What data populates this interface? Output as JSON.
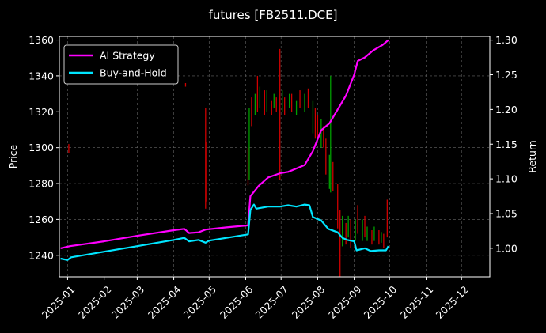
{
  "chart_data": {
    "type": "line",
    "title": "futures [FB2511.DCE]",
    "xlabel": "",
    "ylabel": "Price",
    "y2label": "Return",
    "grid": true,
    "legend_position": "top-left",
    "xlim": [
      "2024-12-25",
      "2025-12-25"
    ],
    "ylim": [
      1228,
      1362
    ],
    "y2lim": [
      0.9588,
      1.3053
    ],
    "x_ticks": [
      "2025-01",
      "2025-02",
      "2025-03",
      "2025-04",
      "2025-05",
      "2025-06",
      "2025-07",
      "2025-08",
      "2025-09",
      "2025-10",
      "2025-11",
      "2025-12"
    ],
    "y_ticks": [
      1240,
      1260,
      1280,
      1300,
      1320,
      1340,
      1360
    ],
    "y2_ticks": [
      "1.00",
      "1.05",
      "1.10",
      "1.15",
      "1.20",
      "1.25",
      "1.30"
    ],
    "colors": {
      "up": "#00a000",
      "down": "#d00000",
      "ai": "#ff00ff",
      "bh": "#00e5ff"
    },
    "price_bars": [
      {
        "x": "2025-01-02",
        "low": 1297,
        "high": 1302,
        "dir": "down"
      },
      {
        "x": "2025-04-11",
        "low": 1334,
        "high": 1336,
        "dir": "down"
      },
      {
        "x": "2025-04-28",
        "low": 1266,
        "high": 1322,
        "dir": "down"
      },
      {
        "x": "2025-04-29",
        "low": 1270,
        "high": 1303,
        "dir": "down"
      },
      {
        "x": "2025-06-03",
        "low": 1279,
        "high": 1300,
        "dir": "down"
      },
      {
        "x": "2025-06-04",
        "low": 1282,
        "high": 1322,
        "dir": "up"
      },
      {
        "x": "2025-06-06",
        "low": 1312,
        "high": 1328,
        "dir": "down"
      },
      {
        "x": "2025-06-09",
        "low": 1318,
        "high": 1330,
        "dir": "up"
      },
      {
        "x": "2025-06-11",
        "low": 1320,
        "high": 1340,
        "dir": "down"
      },
      {
        "x": "2025-06-13",
        "low": 1322,
        "high": 1334,
        "dir": "up"
      },
      {
        "x": "2025-06-17",
        "low": 1318,
        "high": 1332,
        "dir": "down"
      },
      {
        "x": "2025-06-19",
        "low": 1320,
        "high": 1332,
        "dir": "up"
      },
      {
        "x": "2025-06-23",
        "low": 1318,
        "high": 1326,
        "dir": "down"
      },
      {
        "x": "2025-06-25",
        "low": 1322,
        "high": 1330,
        "dir": "up"
      },
      {
        "x": "2025-06-27",
        "low": 1320,
        "high": 1328,
        "dir": "down"
      },
      {
        "x": "2025-06-30",
        "low": 1282,
        "high": 1355,
        "dir": "down"
      },
      {
        "x": "2025-07-02",
        "low": 1320,
        "high": 1332,
        "dir": "up"
      },
      {
        "x": "2025-07-04",
        "low": 1318,
        "high": 1328,
        "dir": "down"
      },
      {
        "x": "2025-07-08",
        "low": 1322,
        "high": 1330,
        "dir": "up"
      },
      {
        "x": "2025-07-10",
        "low": 1320,
        "high": 1330,
        "dir": "down"
      },
      {
        "x": "2025-07-14",
        "low": 1318,
        "high": 1326,
        "dir": "up"
      },
      {
        "x": "2025-07-17",
        "low": 1322,
        "high": 1332,
        "dir": "down"
      },
      {
        "x": "2025-07-21",
        "low": 1320,
        "high": 1330,
        "dir": "up"
      },
      {
        "x": "2025-07-24",
        "low": 1322,
        "high": 1333,
        "dir": "down"
      },
      {
        "x": "2025-07-28",
        "low": 1308,
        "high": 1326,
        "dir": "up"
      },
      {
        "x": "2025-07-30",
        "low": 1305,
        "high": 1322,
        "dir": "down"
      },
      {
        "x": "2025-08-01",
        "low": 1306,
        "high": 1318,
        "dir": "down"
      },
      {
        "x": "2025-08-04",
        "low": 1300,
        "high": 1316,
        "dir": "up"
      },
      {
        "x": "2025-08-06",
        "low": 1300,
        "high": 1312,
        "dir": "down"
      },
      {
        "x": "2025-08-08",
        "low": 1285,
        "high": 1305,
        "dir": "down"
      },
      {
        "x": "2025-08-11",
        "low": 1277,
        "high": 1296,
        "dir": "up"
      },
      {
        "x": "2025-08-12",
        "low": 1275,
        "high": 1340,
        "dir": "up"
      },
      {
        "x": "2025-08-14",
        "low": 1276,
        "high": 1292,
        "dir": "down"
      },
      {
        "x": "2025-08-18",
        "low": 1255,
        "high": 1280,
        "dir": "down"
      },
      {
        "x": "2025-08-20",
        "low": 1228,
        "high": 1265,
        "dir": "down"
      },
      {
        "x": "2025-08-22",
        "low": 1245,
        "high": 1262,
        "dir": "up"
      },
      {
        "x": "2025-08-25",
        "low": 1246,
        "high": 1258,
        "dir": "down"
      },
      {
        "x": "2025-08-27",
        "low": 1250,
        "high": 1262,
        "dir": "up"
      },
      {
        "x": "2025-08-29",
        "low": 1244,
        "high": 1260,
        "dir": "down"
      },
      {
        "x": "2025-09-02",
        "low": 1248,
        "high": 1260,
        "dir": "up"
      },
      {
        "x": "2025-09-04",
        "low": 1252,
        "high": 1268,
        "dir": "down"
      },
      {
        "x": "2025-09-08",
        "low": 1248,
        "high": 1260,
        "dir": "up"
      },
      {
        "x": "2025-09-10",
        "low": 1250,
        "high": 1262,
        "dir": "down"
      },
      {
        "x": "2025-09-12",
        "low": 1248,
        "high": 1256,
        "dir": "up"
      },
      {
        "x": "2025-09-16",
        "low": 1246,
        "high": 1254,
        "dir": "down"
      },
      {
        "x": "2025-09-18",
        "low": 1248,
        "high": 1256,
        "dir": "up"
      },
      {
        "x": "2025-09-22",
        "low": 1246,
        "high": 1254,
        "dir": "down"
      },
      {
        "x": "2025-09-24",
        "low": 1247,
        "high": 1253,
        "dir": "up"
      },
      {
        "x": "2025-09-26",
        "low": 1244,
        "high": 1252,
        "dir": "down"
      },
      {
        "x": "2025-09-29",
        "low": 1250,
        "high": 1271,
        "dir": "down"
      }
    ],
    "series": [
      {
        "name": "AI Strategy",
        "axis": "right",
        "points": [
          [
            "2024-12-26",
            1.0
          ],
          [
            "2025-01-03",
            1.003
          ],
          [
            "2025-02-01",
            1.01
          ],
          [
            "2025-03-01",
            1.018
          ],
          [
            "2025-04-01",
            1.026
          ],
          [
            "2025-04-10",
            1.028
          ],
          [
            "2025-04-14",
            1.022
          ],
          [
            "2025-04-22",
            1.023
          ],
          [
            "2025-04-28",
            1.027
          ],
          [
            "2025-05-15",
            1.03
          ],
          [
            "2025-06-03",
            1.033
          ],
          [
            "2025-06-05",
            1.075
          ],
          [
            "2025-06-12",
            1.09
          ],
          [
            "2025-06-20",
            1.102
          ],
          [
            "2025-06-30",
            1.108
          ],
          [
            "2025-07-07",
            1.11
          ],
          [
            "2025-07-14",
            1.115
          ],
          [
            "2025-07-21",
            1.12
          ],
          [
            "2025-07-28",
            1.14
          ],
          [
            "2025-08-04",
            1.17
          ],
          [
            "2025-08-11",
            1.18
          ],
          [
            "2025-08-18",
            1.2
          ],
          [
            "2025-08-25",
            1.22
          ],
          [
            "2025-09-01",
            1.25
          ],
          [
            "2025-09-04",
            1.27
          ],
          [
            "2025-09-10",
            1.275
          ],
          [
            "2025-09-17",
            1.285
          ],
          [
            "2025-09-25",
            1.293
          ],
          [
            "2025-09-30",
            1.3
          ]
        ]
      },
      {
        "name": "Buy-and-Hold",
        "axis": "right",
        "points": [
          [
            "2024-12-26",
            0.985
          ],
          [
            "2025-01-01",
            0.983
          ],
          [
            "2025-01-04",
            0.987
          ],
          [
            "2025-02-01",
            0.995
          ],
          [
            "2025-03-01",
            1.003
          ],
          [
            "2025-04-01",
            1.012
          ],
          [
            "2025-04-10",
            1.015
          ],
          [
            "2025-04-14",
            1.01
          ],
          [
            "2025-04-22",
            1.012
          ],
          [
            "2025-04-28",
            1.008
          ],
          [
            "2025-05-01",
            1.011
          ],
          [
            "2025-06-03",
            1.02
          ],
          [
            "2025-06-05",
            1.055
          ],
          [
            "2025-06-08",
            1.063
          ],
          [
            "2025-06-10",
            1.057
          ],
          [
            "2025-06-20",
            1.06
          ],
          [
            "2025-06-30",
            1.06
          ],
          [
            "2025-07-07",
            1.062
          ],
          [
            "2025-07-14",
            1.06
          ],
          [
            "2025-07-21",
            1.063
          ],
          [
            "2025-07-25",
            1.062
          ],
          [
            "2025-07-28",
            1.045
          ],
          [
            "2025-08-04",
            1.04
          ],
          [
            "2025-08-10",
            1.028
          ],
          [
            "2025-08-18",
            1.023
          ],
          [
            "2025-08-22",
            1.015
          ],
          [
            "2025-08-26",
            1.012
          ],
          [
            "2025-09-01",
            1.01
          ],
          [
            "2025-09-03",
            0.997
          ],
          [
            "2025-09-10",
            1.0
          ],
          [
            "2025-09-15",
            0.996
          ],
          [
            "2025-09-22",
            0.997
          ],
          [
            "2025-09-28",
            0.997
          ],
          [
            "2025-09-30",
            1.003
          ]
        ]
      }
    ]
  }
}
